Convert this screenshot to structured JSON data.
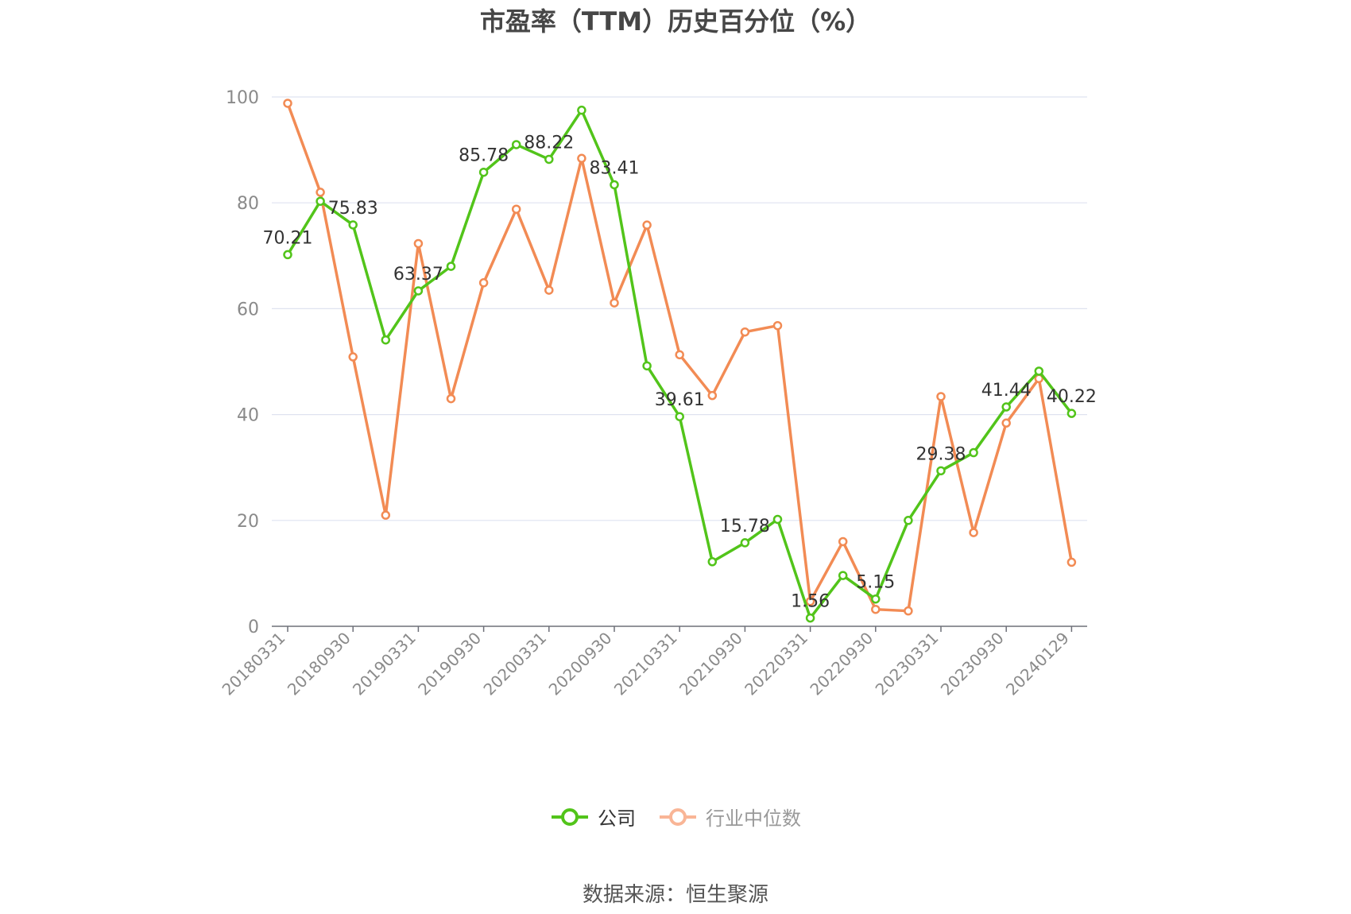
{
  "chart_data": {
    "type": "line",
    "title": "市盈率（TTM）历史百分位（%）",
    "source": "数据来源：恒生聚源",
    "ylim": [
      0,
      100
    ],
    "yticks": [
      0,
      20,
      40,
      60,
      80,
      100
    ],
    "grid": true,
    "legend_position": "bottom",
    "x": [
      "20180331",
      "20180630",
      "20180930",
      "20181231",
      "20190331",
      "20190630",
      "20190930",
      "20191231",
      "20200331",
      "20200630",
      "20200930",
      "20201231",
      "20210331",
      "20210630",
      "20210930",
      "20211231",
      "20220331",
      "20220630",
      "20220930",
      "20221231",
      "20230331",
      "20230630",
      "20230930",
      "20231231",
      "20240129"
    ],
    "xtick_labels": [
      "20180331",
      "20180930",
      "20190331",
      "20190930",
      "20200331",
      "20200930",
      "20210331",
      "20210930",
      "20220331",
      "20220930",
      "20230331",
      "20230930",
      "20240129"
    ],
    "series": [
      {
        "name": "公司",
        "color": "#52c41a",
        "values": [
          70.21,
          80.3,
          75.83,
          54.1,
          63.37,
          68.0,
          85.78,
          91.0,
          88.22,
          97.5,
          83.41,
          49.2,
          39.61,
          12.2,
          15.78,
          20.2,
          1.56,
          9.6,
          5.15,
          20.0,
          29.38,
          32.8,
          41.44,
          48.2,
          40.22
        ],
        "labels": [
          "70.21",
          "",
          "75.83",
          "",
          "63.37",
          "",
          "85.78",
          "",
          "88.22",
          "",
          "83.41",
          "",
          "39.61",
          "",
          "15.78",
          "",
          "1.56",
          "",
          "5.15",
          "",
          "29.38",
          "",
          "41.44",
          "",
          "40.22"
        ]
      },
      {
        "name": "行业中位数",
        "color": "#f28b54",
        "values": [
          98.8,
          82.0,
          50.9,
          21.0,
          72.3,
          43.0,
          64.9,
          78.8,
          63.5,
          88.4,
          61.1,
          75.8,
          51.3,
          43.6,
          55.6,
          56.8,
          4.7,
          16.0,
          3.2,
          2.9,
          43.4,
          17.7,
          38.4,
          46.8,
          12.1
        ]
      }
    ]
  },
  "legend": {
    "items": [
      {
        "label": "公司",
        "color": "#52c41a"
      },
      {
        "label": "行业中位数",
        "color": "#f9b596"
      }
    ]
  }
}
